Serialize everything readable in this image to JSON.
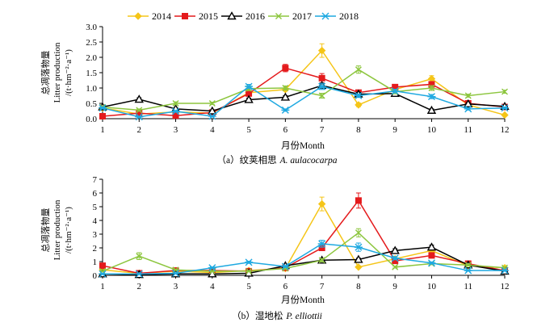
{
  "legend": {
    "items": [
      {
        "name": "2014",
        "color": "#F5C518",
        "marker": "diamond"
      },
      {
        "name": "2015",
        "color": "#E41A1C",
        "marker": "square"
      },
      {
        "name": "2016",
        "color": "#000000",
        "marker": "triangle"
      },
      {
        "name": "2017",
        "color": "#8DC63F",
        "marker": "x"
      },
      {
        "name": "2018",
        "color": "#1FA9E1",
        "marker": "star"
      }
    ]
  },
  "chart_data": [
    {
      "type": "line",
      "title": "",
      "caption_prefix": "（a）纹荚相思",
      "caption_species": "A. aulacocarpa",
      "xlabel": "月份Month",
      "ylabel_cn": "总凋落物量",
      "ylabel_en": "Litter production",
      "ylabel_unit": "/(t·hm⁻²·a⁻¹)",
      "x": [
        1,
        2,
        3,
        4,
        5,
        6,
        7,
        8,
        9,
        10,
        11,
        12
      ],
      "ylim": [
        0,
        3.0
      ],
      "yticks": [
        "0.0",
        "0.5",
        "1.0",
        "1.5",
        "2.0",
        "2.5",
        "3.0"
      ],
      "ytick_values": [
        0,
        0.5,
        1.0,
        1.5,
        2.0,
        2.5,
        3.0
      ],
      "grid": false,
      "series": [
        {
          "name": "2014",
          "values": [
            0.35,
            0.15,
            0.22,
            0.18,
            0.85,
            0.95,
            2.22,
            0.45,
            0.95,
            1.3,
            0.45,
            0.12
          ],
          "errors": [
            0.03,
            0.03,
            0.03,
            0.03,
            0.06,
            0.05,
            0.22,
            0.06,
            0.07,
            0.1,
            0.05,
            0.03
          ]
        },
        {
          "name": "2015",
          "values": [
            0.08,
            0.18,
            0.1,
            0.2,
            0.82,
            1.65,
            1.32,
            0.85,
            1.03,
            1.12,
            0.5,
            0.38
          ],
          "errors": [
            0.02,
            0.03,
            0.02,
            0.03,
            0.07,
            0.12,
            0.15,
            0.08,
            0.08,
            0.09,
            0.05,
            0.04
          ]
        },
        {
          "name": "2016",
          "values": [
            0.38,
            0.63,
            0.32,
            0.25,
            0.62,
            0.7,
            1.08,
            0.8,
            0.82,
            0.27,
            0.48,
            0.4
          ],
          "errors": [
            0.03,
            0.05,
            0.03,
            0.03,
            0.05,
            0.05,
            0.08,
            0.06,
            0.06,
            0.05,
            0.04,
            0.03
          ]
        },
        {
          "name": "2017",
          "values": [
            0.38,
            0.28,
            0.5,
            0.5,
            0.98,
            1.0,
            0.75,
            1.6,
            0.88,
            1.0,
            0.75,
            0.88
          ],
          "errors": [
            0.03,
            0.04,
            0.05,
            0.04,
            0.07,
            0.07,
            0.08,
            0.12,
            0.07,
            0.08,
            0.05,
            0.05
          ]
        },
        {
          "name": "2018",
          "values": [
            0.35,
            0.06,
            0.24,
            0.08,
            1.05,
            0.28,
            1.05,
            0.75,
            0.9,
            0.72,
            0.32,
            0.35
          ],
          "errors": [
            0.03,
            0.02,
            0.03,
            0.02,
            0.07,
            0.04,
            0.1,
            0.06,
            0.06,
            0.07,
            0.04,
            0.03
          ]
        }
      ]
    },
    {
      "type": "line",
      "title": "",
      "caption_prefix": "（b）湿地松",
      "caption_species": "P. elliottii",
      "xlabel": "月份Month",
      "ylabel_cn": "总凋落物量",
      "ylabel_en": "Litter production",
      "ylabel_unit": "/(t·hm⁻²·a⁻¹)",
      "x": [
        1,
        2,
        3,
        4,
        5,
        6,
        7,
        8,
        9,
        10,
        11,
        12
      ],
      "ylim": [
        0,
        7
      ],
      "yticks": [
        "0",
        "1",
        "2",
        "3",
        "4",
        "5",
        "6",
        "7"
      ],
      "ytick_values": [
        0,
        1,
        2,
        3,
        4,
        5,
        6,
        7
      ],
      "grid": false,
      "series": [
        {
          "name": "2014",
          "values": [
            0.4,
            0.15,
            0.3,
            0.2,
            0.35,
            0.5,
            5.2,
            0.6,
            1.2,
            1.8,
            0.7,
            0.55
          ],
          "errors": [
            0.04,
            0.03,
            0.04,
            0.03,
            0.05,
            0.06,
            0.5,
            0.08,
            0.1,
            0.12,
            0.07,
            0.05
          ]
        },
        {
          "name": "2015",
          "values": [
            0.7,
            0.15,
            0.35,
            0.35,
            0.3,
            0.55,
            2.0,
            5.45,
            1.05,
            1.45,
            0.85,
            0.35
          ],
          "errors": [
            0.06,
            0.03,
            0.04,
            0.04,
            0.04,
            0.06,
            0.2,
            0.55,
            0.1,
            0.12,
            0.08,
            0.04
          ]
        },
        {
          "name": "2016",
          "values": [
            0.1,
            0.05,
            0.1,
            0.1,
            0.15,
            0.7,
            1.1,
            1.15,
            1.8,
            2.05,
            0.75,
            0.3
          ],
          "errors": [
            0.02,
            0.02,
            0.02,
            0.02,
            0.03,
            0.06,
            0.1,
            0.1,
            0.14,
            0.15,
            0.06,
            0.04
          ]
        },
        {
          "name": "2017",
          "values": [
            0.3,
            1.4,
            0.4,
            0.3,
            0.3,
            0.5,
            1.1,
            3.1,
            0.6,
            0.85,
            0.75,
            0.55
          ],
          "errors": [
            0.04,
            0.25,
            0.05,
            0.04,
            0.04,
            0.06,
            0.12,
            0.3,
            0.07,
            0.08,
            0.07,
            0.05
          ]
        },
        {
          "name": "2018",
          "values": [
            0.1,
            0.1,
            0.15,
            0.55,
            0.95,
            0.65,
            2.3,
            2.05,
            1.25,
            0.9,
            0.35,
            0.35
          ],
          "errors": [
            0.03,
            0.03,
            0.03,
            0.06,
            0.08,
            0.07,
            0.25,
            0.3,
            0.12,
            0.08,
            0.05,
            0.04
          ]
        }
      ]
    }
  ]
}
